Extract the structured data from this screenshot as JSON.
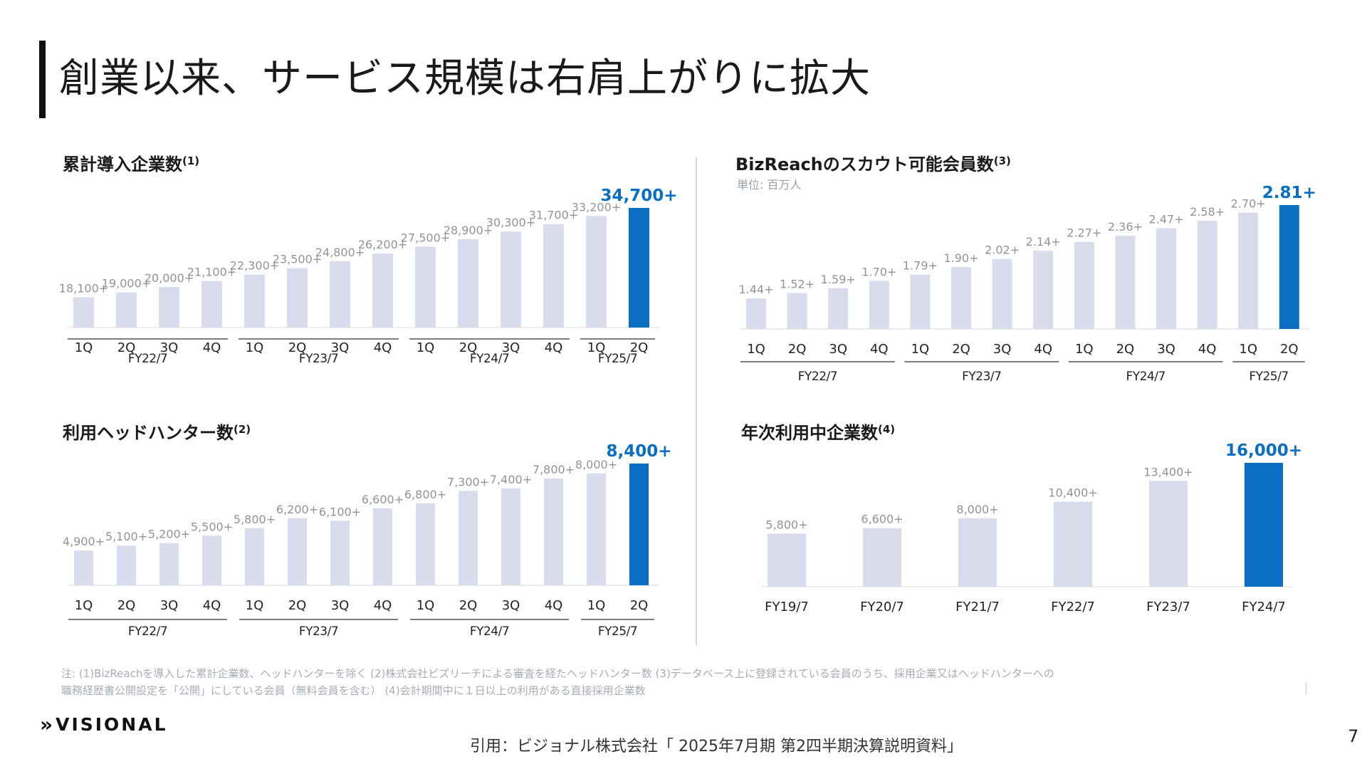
{
  "title": "創業以来、サービス規模は右肩上がりに拡大",
  "colors": {
    "bar": "#d9dcec",
    "highlight": "#0a6fc2",
    "label": "#8f949b"
  },
  "chart_data": [
    {
      "type": "bar",
      "title": "累計導入企業数",
      "title_sup": "(1)",
      "categories": [
        "1Q",
        "2Q",
        "3Q",
        "4Q",
        "1Q",
        "2Q",
        "3Q",
        "4Q",
        "1Q",
        "2Q",
        "3Q",
        "4Q",
        "1Q",
        "2Q"
      ],
      "values": [
        18100,
        19000,
        20000,
        21100,
        22300,
        23500,
        24800,
        26200,
        27500,
        28900,
        30300,
        31700,
        33200,
        34700
      ],
      "labels": [
        "18,100+",
        "19,000+",
        "20,000+",
        "21,100+",
        "22,300+",
        "23,500+",
        "24,800+",
        "26,200+",
        "27,500+",
        "28,900+",
        "30,300+",
        "31,700+",
        "33,200+",
        "34,700+"
      ],
      "groups": [
        {
          "name": "FY22/7",
          "span": 4
        },
        {
          "name": "FY23/7",
          "span": 4
        },
        {
          "name": "FY24/7",
          "span": 4
        },
        {
          "name": "FY25/7",
          "span": 2
        }
      ],
      "highlight_index": 13
    },
    {
      "type": "bar",
      "title": "BizReachのスカウト可能会員数",
      "title_sup": "(3)",
      "unit": "単位: 百万人",
      "categories": [
        "1Q",
        "2Q",
        "3Q",
        "4Q",
        "1Q",
        "2Q",
        "3Q",
        "4Q",
        "1Q",
        "2Q",
        "3Q",
        "4Q",
        "1Q",
        "2Q"
      ],
      "values": [
        1.44,
        1.52,
        1.59,
        1.7,
        1.79,
        1.9,
        2.02,
        2.14,
        2.27,
        2.36,
        2.47,
        2.58,
        2.7,
        2.81
      ],
      "labels": [
        "1.44+",
        "1.52+",
        "1.59+",
        "1.70+",
        "1.79+",
        "1.90+",
        "2.02+",
        "2.14+",
        "2.27+",
        "2.36+",
        "2.47+",
        "2.58+",
        "2.70+",
        "2.81+"
      ],
      "groups": [
        {
          "name": "FY22/7",
          "span": 4
        },
        {
          "name": "FY23/7",
          "span": 4
        },
        {
          "name": "FY24/7",
          "span": 4
        },
        {
          "name": "FY25/7",
          "span": 2
        }
      ],
      "highlight_index": 13
    },
    {
      "type": "bar",
      "title": "利用ヘッドハンター数",
      "title_sup": "(2)",
      "categories": [
        "1Q",
        "2Q",
        "3Q",
        "4Q",
        "1Q",
        "2Q",
        "3Q",
        "4Q",
        "1Q",
        "2Q",
        "3Q",
        "4Q",
        "1Q",
        "2Q"
      ],
      "values": [
        4900,
        5100,
        5200,
        5500,
        5800,
        6200,
        6100,
        6600,
        6800,
        7300,
        7400,
        7800,
        8000,
        8400
      ],
      "labels": [
        "4,900+",
        "5,100+",
        "5,200+",
        "5,500+",
        "5,800+",
        "6,200+",
        "6,100+",
        "6,600+",
        "6,800+",
        "7,300+",
        "7,400+",
        "7,800+",
        "8,000+",
        "8,400+"
      ],
      "groups": [
        {
          "name": "FY22/7",
          "span": 4
        },
        {
          "name": "FY23/7",
          "span": 4
        },
        {
          "name": "FY24/7",
          "span": 4
        },
        {
          "name": "FY25/7",
          "span": 2
        }
      ],
      "highlight_index": 13
    },
    {
      "type": "bar",
      "title": "年次利用中企業数",
      "title_sup": "(4)",
      "categories": [
        "FY19/7",
        "FY20/7",
        "FY21/7",
        "FY22/7",
        "FY23/7",
        "FY24/7"
      ],
      "values": [
        5800,
        6600,
        8000,
        10400,
        13400,
        16000
      ],
      "labels": [
        "5,800+",
        "6,600+",
        "8,000+",
        "10,400+",
        "13,400+",
        "16,000+"
      ],
      "groups": [],
      "highlight_index": 5
    }
  ],
  "notes": {
    "line1": "注: (1)BizReachを導入した累計企業数、ヘッドハンターを除く (2)株式会社ビズリーチによる審査を経たヘッドハンター数 (3)データベース上に登録されている会員のうち、採用企業又はヘッドハンターへの",
    "line2": "職務経歴書公開設定を「公開」にしている会員（無料会員を含む） (4)会計期間中に１日以上の利用がある直接採用企業数"
  },
  "logo": {
    "mark": "»",
    "text": "VISIONAL"
  },
  "source": "引用：ビジョナル株式会社「 2025年7月期 第2四半期決算説明資料」",
  "page_number": "7"
}
